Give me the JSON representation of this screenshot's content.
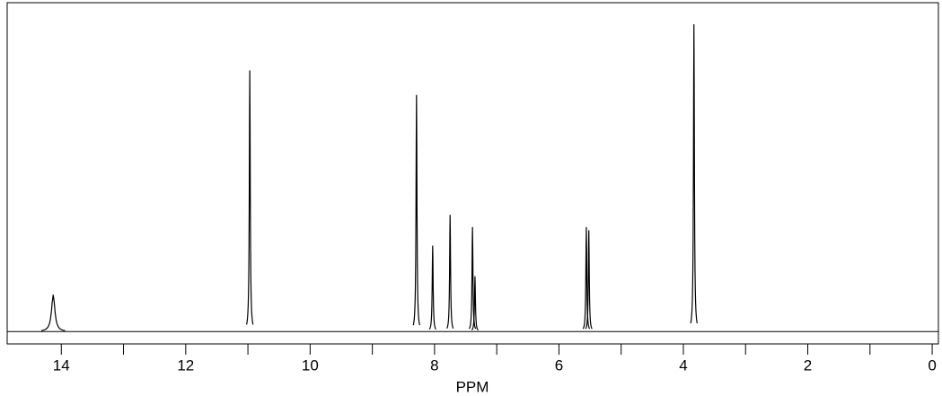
{
  "chart_data": {
    "type": "spectrum",
    "xlabel": "PPM",
    "x": [
      14.13,
      10.97,
      8.29,
      8.03,
      7.75,
      7.39,
      7.35,
      5.56,
      5.52,
      3.83
    ],
    "values": [
      0.12,
      0.85,
      0.77,
      0.28,
      0.38,
      0.34,
      0.18,
      0.34,
      0.33,
      1.0
    ],
    "color": "#000000",
    "xlim": [
      14.87,
      -0.1
    ],
    "ylim": [
      -0.04,
      1.07
    ],
    "xticks": [
      14,
      12,
      10,
      8,
      6,
      4,
      2,
      0
    ],
    "xminorticks": [
      13,
      11,
      9,
      7,
      5,
      3,
      1
    ]
  }
}
